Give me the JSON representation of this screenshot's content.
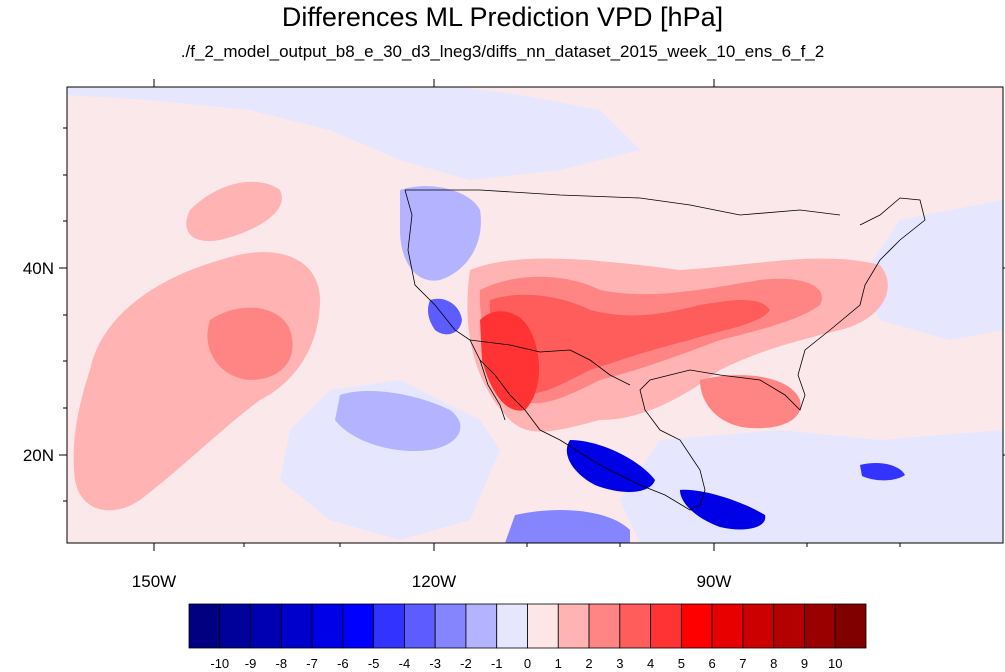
{
  "title": "Differences ML Prediction VPD [hPa]",
  "subtitle": "./f_2_model_output_b8_e_30_d3_lneg3/diffs_nn_dataset_2015_week_10_ens_6_f_2",
  "map": {
    "lon_range": [
      -159,
      -60
    ],
    "lat_range": [
      10,
      59
    ],
    "x_ticks": [
      {
        "lon": -150,
        "label": "150W"
      },
      {
        "lon": -120,
        "label": "120W"
      },
      {
        "lon": -90,
        "label": "90W"
      }
    ],
    "y_ticks": [
      {
        "lat": 40,
        "label": "40N"
      },
      {
        "lat": 20,
        "label": "20N"
      }
    ]
  },
  "colorbar": {
    "labels": [
      "-10",
      "-9",
      "-8",
      "-7",
      "-6",
      "-5",
      "-4",
      "-3",
      "-2",
      "-1",
      "0",
      "1",
      "2",
      "3",
      "4",
      "5",
      "6",
      "7",
      "8",
      "9",
      "10"
    ],
    "colors": [
      "#000080",
      "#00009a",
      "#0000b3",
      "#0000cc",
      "#0000e6",
      "#0000ff",
      "#3333ff",
      "#5c5cff",
      "#8585ff",
      "#b3b3ff",
      "#e6e6ff",
      "#ffe6e6",
      "#ffb3b3",
      "#ff8585",
      "#ff5c5c",
      "#ff3333",
      "#ff0000",
      "#e60000",
      "#cc0000",
      "#b30000",
      "#9a0000",
      "#800000"
    ]
  }
}
